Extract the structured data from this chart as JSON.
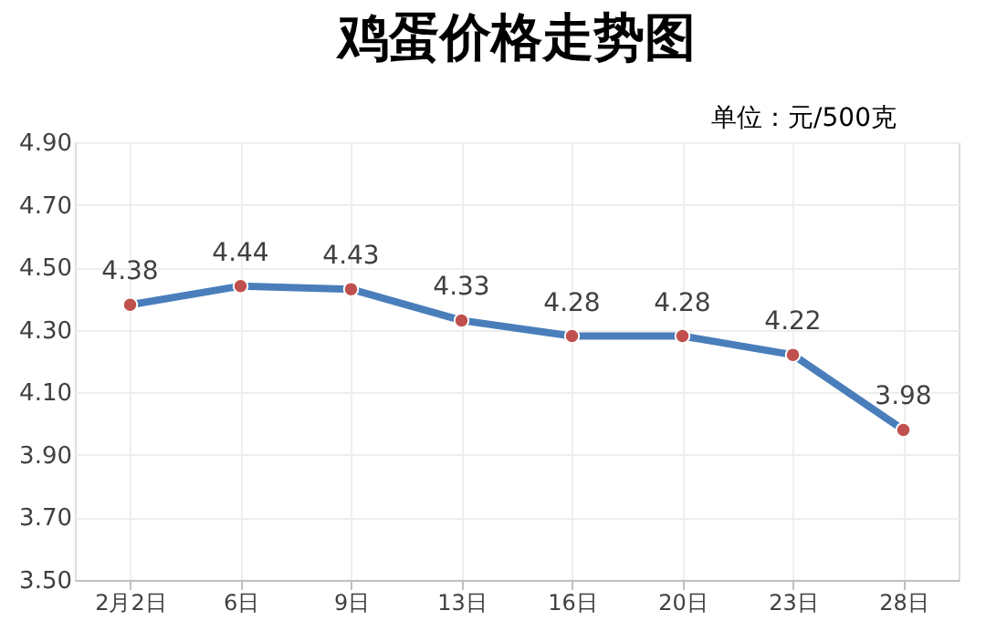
{
  "chart_data": {
    "type": "line",
    "title": "鸡蛋价格走势图",
    "annotations": [
      "单位：元/500克"
    ],
    "categories": [
      "2月2日",
      "6日",
      "9日",
      "13日",
      "16日",
      "20日",
      "23日",
      "28日"
    ],
    "series": [
      {
        "color": "#4a7ebb",
        "colors": [
          "#c0504d",
          "#c0504d",
          "#c0504d",
          "#c0504d",
          "#c0504d",
          "#c0504d",
          "#c0504d",
          "#c0504d"
        ],
        "values": [
          4.38,
          4.44,
          4.43,
          4.33,
          4.28,
          4.28,
          4.22,
          3.98
        ]
      }
    ],
    "ylim": [
      3.5,
      4.9
    ],
    "yticks": [
      {
        "value": 3.5,
        "label": "3.50"
      },
      {
        "value": 3.7,
        "label": "3.70"
      },
      {
        "value": 3.9,
        "label": "3.90"
      },
      {
        "value": 4.1,
        "label": "4.10"
      },
      {
        "value": 4.3,
        "label": "4.30"
      },
      {
        "value": 4.5,
        "label": "4.50"
      },
      {
        "value": 4.7,
        "label": "4.70"
      },
      {
        "value": 4.9,
        "label": "4.90"
      }
    ],
    "grid": true,
    "marker": "circle",
    "line_style": "solid",
    "data_labels": true
  }
}
